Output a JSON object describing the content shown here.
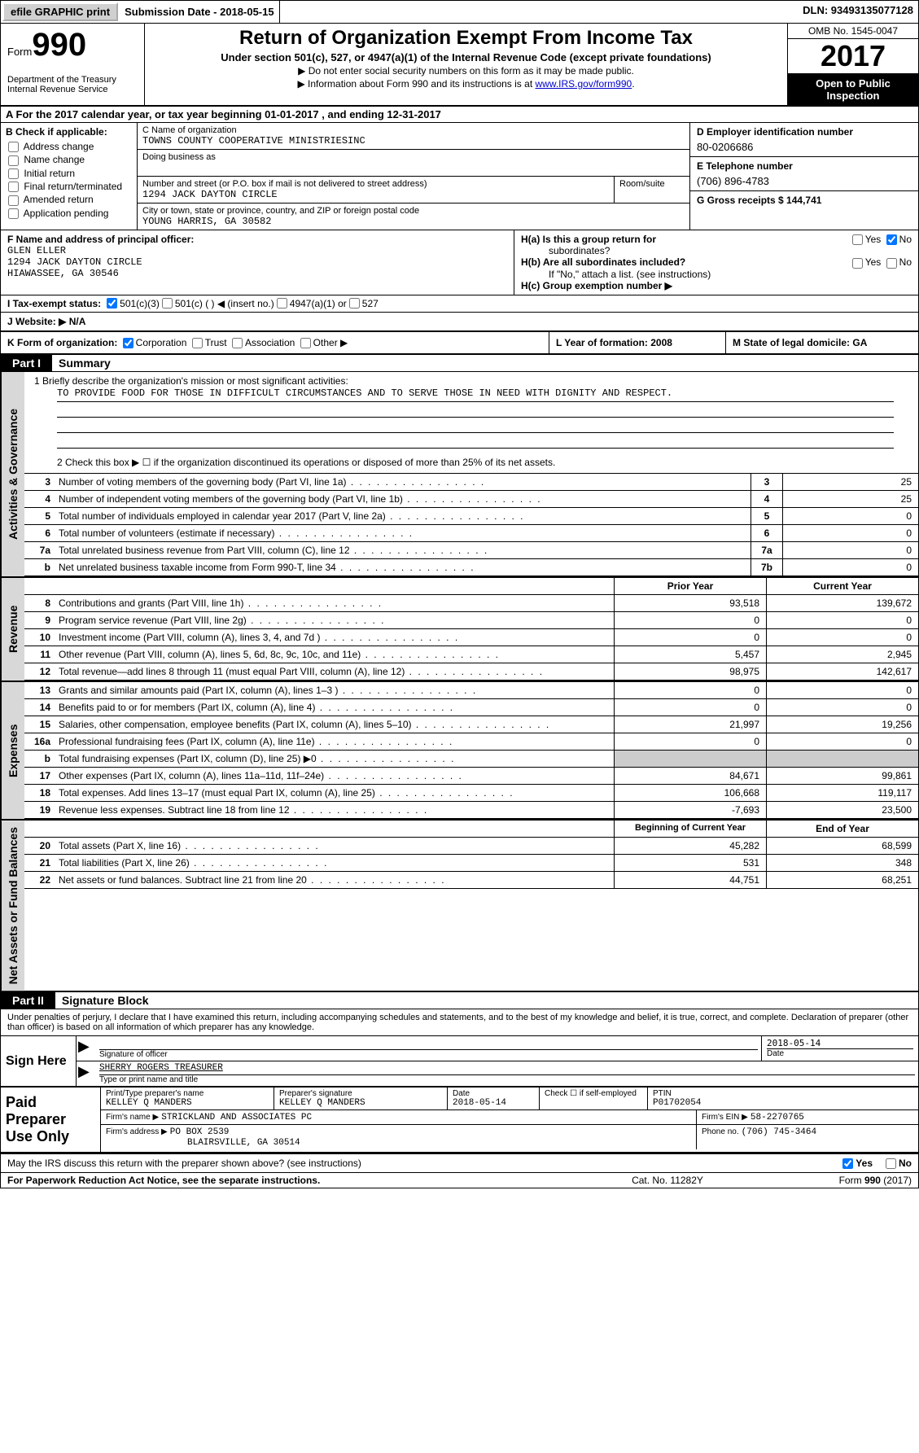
{
  "topbar": {
    "efile_label": "efile GRAPHIC print",
    "submission_label": "Submission Date - 2018-05-15",
    "dln_label": "DLN: 93493135077128"
  },
  "header": {
    "form_label": "Form",
    "form_number": "990",
    "dept_line1": "Department of the Treasury",
    "dept_line2": "Internal Revenue Service",
    "title": "Return of Organization Exempt From Income Tax",
    "subtitle": "Under section 501(c), 527, or 4947(a)(1) of the Internal Revenue Code (except private foundations)",
    "note1": "▶ Do not enter social security numbers on this form as it may be made public.",
    "note2_pre": "▶ Information about Form 990 and its instructions is at ",
    "note2_link": "www.IRS.gov/form990",
    "note2_post": ".",
    "omb": "OMB No. 1545-0047",
    "year": "2017",
    "open1": "Open to Public",
    "open2": "Inspection"
  },
  "rowA": "A  For the 2017 calendar year, or tax year beginning 01-01-2017   , and ending 12-31-2017",
  "colB": {
    "header": "B Check if applicable:",
    "items": [
      "Address change",
      "Name change",
      "Initial return",
      "Final return/terminated",
      "Amended return",
      "Application pending"
    ]
  },
  "colC": {
    "name_label": "C Name of organization",
    "name_val": "TOWNS COUNTY COOPERATIVE MINISTRIESINC",
    "dba_label": "Doing business as",
    "dba_val": "",
    "street_label": "Number and street (or P.O. box if mail is not delivered to street address)",
    "street_val": "1294 JACK DAYTON CIRCLE",
    "room_label": "Room/suite",
    "room_val": "",
    "city_label": "City or town, state or province, country, and ZIP or foreign postal code",
    "city_val": "YOUNG HARRIS, GA  30582"
  },
  "colD": {
    "ein_label": "D Employer identification number",
    "ein_val": "80-0206686",
    "phone_label": "E Telephone number",
    "phone_val": "(706) 896-4783",
    "gross_label": "G Gross receipts $ 144,741"
  },
  "colF": {
    "label": "F Name and address of principal officer:",
    "name": "GLEN ELLER",
    "street": "1294 JACK DAYTON CIRCLE",
    "city": "HIAWASSEE, GA  30546"
  },
  "colH": {
    "ha": "H(a)  Is this a group return for",
    "ha2": "subordinates?",
    "hb": "H(b)  Are all subordinates included?",
    "hnote": "If \"No,\" attach a list. (see instructions)",
    "hc": "H(c)  Group exemption number ▶",
    "yes": "Yes",
    "no": "No"
  },
  "rowI": {
    "label": "I  Tax-exempt status:",
    "opt1": "501(c)(3)",
    "opt2": "501(c) (  ) ◀ (insert no.)",
    "opt3": "4947(a)(1) or",
    "opt4": "527"
  },
  "rowJ": "J  Website: ▶  N/A",
  "rowK": {
    "k": "K Form of organization:",
    "k1": "Corporation",
    "k2": "Trust",
    "k3": "Association",
    "k4": "Other ▶",
    "l": "L Year of formation: 2008",
    "m": "M State of legal domicile: GA"
  },
  "part1": {
    "tag": "Part I",
    "title": "Summary",
    "mission_label": "1   Briefly describe the organization's mission or most significant activities:",
    "mission_val": "TO PROVIDE FOOD FOR THOSE IN DIFFICULT CIRCUMSTANCES AND TO SERVE THOSE IN NEED WITH DIGNITY AND RESPECT.",
    "check2": "2   Check this box ▶ ☐  if the organization discontinued its operations or disposed of more than 25% of its net assets."
  },
  "gov_rows": [
    {
      "n": "3",
      "label": "Number of voting members of the governing body (Part VI, line 1a)",
      "box": "3",
      "val": "25"
    },
    {
      "n": "4",
      "label": "Number of independent voting members of the governing body (Part VI, line 1b)",
      "box": "4",
      "val": "25"
    },
    {
      "n": "5",
      "label": "Total number of individuals employed in calendar year 2017 (Part V, line 2a)",
      "box": "5",
      "val": "0"
    },
    {
      "n": "6",
      "label": "Total number of volunteers (estimate if necessary)",
      "box": "6",
      "val": "0"
    },
    {
      "n": "7a",
      "label": "Total unrelated business revenue from Part VIII, column (C), line 12",
      "box": "7a",
      "val": "0"
    },
    {
      "n": "b",
      "label": "Net unrelated business taxable income from Form 990-T, line 34",
      "box": "7b",
      "val": "0"
    }
  ],
  "vtabs": {
    "gov": "Activities & Governance",
    "rev": "Revenue",
    "exp": "Expenses",
    "net": "Net Assets or Fund Balances"
  },
  "yr_header": {
    "py": "Prior Year",
    "cy": "Current Year"
  },
  "rev_rows": [
    {
      "n": "8",
      "label": "Contributions and grants (Part VIII, line 1h)",
      "py": "93,518",
      "cy": "139,672"
    },
    {
      "n": "9",
      "label": "Program service revenue (Part VIII, line 2g)",
      "py": "0",
      "cy": "0"
    },
    {
      "n": "10",
      "label": "Investment income (Part VIII, column (A), lines 3, 4, and 7d )",
      "py": "0",
      "cy": "0"
    },
    {
      "n": "11",
      "label": "Other revenue (Part VIII, column (A), lines 5, 6d, 8c, 9c, 10c, and 11e)",
      "py": "5,457",
      "cy": "2,945"
    },
    {
      "n": "12",
      "label": "Total revenue—add lines 8 through 11 (must equal Part VIII, column (A), line 12)",
      "py": "98,975",
      "cy": "142,617"
    }
  ],
  "exp_rows": [
    {
      "n": "13",
      "label": "Grants and similar amounts paid (Part IX, column (A), lines 1–3 )",
      "py": "0",
      "cy": "0"
    },
    {
      "n": "14",
      "label": "Benefits paid to or for members (Part IX, column (A), line 4)",
      "py": "0",
      "cy": "0"
    },
    {
      "n": "15",
      "label": "Salaries, other compensation, employee benefits (Part IX, column (A), lines 5–10)",
      "py": "21,997",
      "cy": "19,256"
    },
    {
      "n": "16a",
      "label": "Professional fundraising fees (Part IX, column (A), line 11e)",
      "py": "0",
      "cy": "0"
    },
    {
      "n": "b",
      "label": "Total fundraising expenses (Part IX, column (D), line 25) ▶0",
      "py": "",
      "cy": "",
      "grey": true
    },
    {
      "n": "17",
      "label": "Other expenses (Part IX, column (A), lines 11a–11d, 11f–24e)",
      "py": "84,671",
      "cy": "99,861"
    },
    {
      "n": "18",
      "label": "Total expenses. Add lines 13–17 (must equal Part IX, column (A), line 25)",
      "py": "106,668",
      "cy": "119,117"
    },
    {
      "n": "19",
      "label": "Revenue less expenses. Subtract line 18 from line 12",
      "py": "-7,693",
      "cy": "23,500"
    }
  ],
  "net_header": {
    "py": "Beginning of Current Year",
    "cy": "End of Year"
  },
  "net_rows": [
    {
      "n": "20",
      "label": "Total assets (Part X, line 16)",
      "py": "45,282",
      "cy": "68,599"
    },
    {
      "n": "21",
      "label": "Total liabilities (Part X, line 26)",
      "py": "531",
      "cy": "348"
    },
    {
      "n": "22",
      "label": "Net assets or fund balances. Subtract line 21 from line 20",
      "py": "44,751",
      "cy": "68,251"
    }
  ],
  "part2": {
    "tag": "Part II",
    "title": "Signature Block",
    "declaration": "Under penalties of perjury, I declare that I have examined this return, including accompanying schedules and statements, and to the best of my knowledge and belief, it is true, correct, and complete. Declaration of preparer (other than officer) is based on all information of which preparer has any knowledge."
  },
  "sign": {
    "label": "Sign Here",
    "sig_label": "Signature of officer",
    "sig_date": "2018-05-14",
    "date_label": "Date",
    "name_val": "SHERRY ROGERS TREASURER",
    "name_label": "Type or print name and title"
  },
  "prep": {
    "label1": "Paid",
    "label2": "Preparer",
    "label3": "Use Only",
    "r1": {
      "name_lbl": "Print/Type preparer's name",
      "name_val": "KELLEY Q MANDERS",
      "sig_lbl": "Preparer's signature",
      "sig_val": "KELLEY Q MANDERS",
      "date_lbl": "Date",
      "date_val": "2018-05-14",
      "check_lbl": "Check ☐ if self-employed",
      "ptin_lbl": "PTIN",
      "ptin_val": "P01702054"
    },
    "r2": {
      "firm_lbl": "Firm's name    ▶",
      "firm_val": "STRICKLAND AND ASSOCIATES PC",
      "ein_lbl": "Firm's EIN ▶",
      "ein_val": "58-2270765"
    },
    "r3": {
      "addr_lbl": "Firm's address ▶",
      "addr_val1": "PO BOX 2539",
      "addr_val2": "BLAIRSVILLE, GA  30514",
      "phone_lbl": "Phone no.",
      "phone_val": "(706) 745-3464"
    }
  },
  "discuss": {
    "label": "May the IRS discuss this return with the preparer shown above? (see instructions)",
    "yes": "Yes",
    "no": "No"
  },
  "footer": {
    "left": "For Paperwork Reduction Act Notice, see the separate instructions.",
    "center": "Cat. No. 11282Y",
    "right_pre": "Form ",
    "right_num": "990",
    "right_post": " (2017)"
  }
}
